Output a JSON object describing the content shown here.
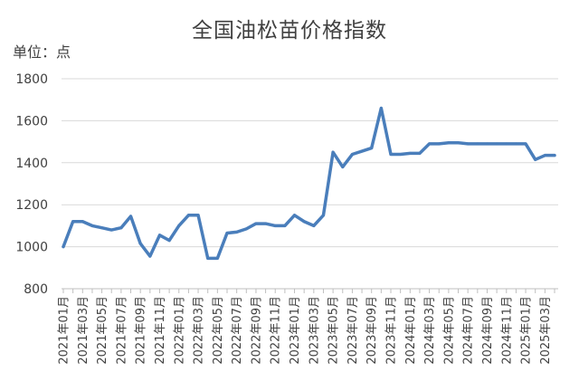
{
  "chart_data": {
    "type": "line",
    "title": "全国油松苗价格指数",
    "unit": "单位：点",
    "xlabel": "",
    "ylabel": "",
    "ylim": [
      800,
      1800
    ],
    "yticks": [
      800,
      1000,
      1200,
      1400,
      1600,
      1800
    ],
    "grid": true,
    "legend": "none",
    "line_color": "#4a7ebb",
    "x": [
      "2021年01月",
      "2021年02月",
      "2021年03月",
      "2021年04月",
      "2021年05月",
      "2021年06月",
      "2021年07月",
      "2021年08月",
      "2021年09月",
      "2021年10月",
      "2021年11月",
      "2021年12月",
      "2022年01月",
      "2022年02月",
      "2022年03月",
      "2022年04月",
      "2022年05月",
      "2022年06月",
      "2022年07月",
      "2022年08月",
      "2022年09月",
      "2022年10月",
      "2022年11月",
      "2022年12月",
      "2023年01月",
      "2023年02月",
      "2023年03月",
      "2023年04月",
      "2023年05月",
      "2023年06月",
      "2023年07月",
      "2023年08月",
      "2023年09月",
      "2023年10月",
      "2023年11月",
      "2023年12月",
      "2024年01月",
      "2024年02月",
      "2024年03月",
      "2024年04月",
      "2024年05月",
      "2024年06月",
      "2024年07月",
      "2024年08月",
      "2024年09月",
      "2024年10月",
      "2024年11月",
      "2024年12月",
      "2025年01月",
      "2025年02月",
      "2025年03月",
      "2025年04月"
    ],
    "xtick_labels": [
      "2021年01月",
      "2021年03月",
      "2021年05月",
      "2021年07月",
      "2021年09月",
      "2021年11月",
      "2022年01月",
      "2022年03月",
      "2022年05月",
      "2022年07月",
      "2022年09月",
      "2022年11月",
      "2023年01月",
      "2023年03月",
      "2023年05月",
      "2023年07月",
      "2023年09月",
      "2023年11月",
      "2024年01月",
      "2024年03月",
      "2024年05月",
      "2024年07月",
      "2024年09月",
      "2024年11月",
      "2025年01月",
      "2025年03月"
    ],
    "series": [
      {
        "values": [
          1000,
          1120,
          1120,
          1100,
          1090,
          1080,
          1090,
          1145,
          1015,
          955,
          1055,
          1030,
          1100,
          1150,
          1150,
          945,
          945,
          1065,
          1070,
          1085,
          1110,
          1110,
          1100,
          1100,
          1150,
          1120,
          1100,
          1150,
          1450,
          1380,
          1440,
          1455,
          1470,
          1660,
          1440,
          1440,
          1445,
          1445,
          1490,
          1490,
          1495,
          1495,
          1490,
          1490,
          1490,
          1490,
          1490,
          1490,
          1490,
          1415,
          1435,
          1435
        ]
      }
    ]
  }
}
